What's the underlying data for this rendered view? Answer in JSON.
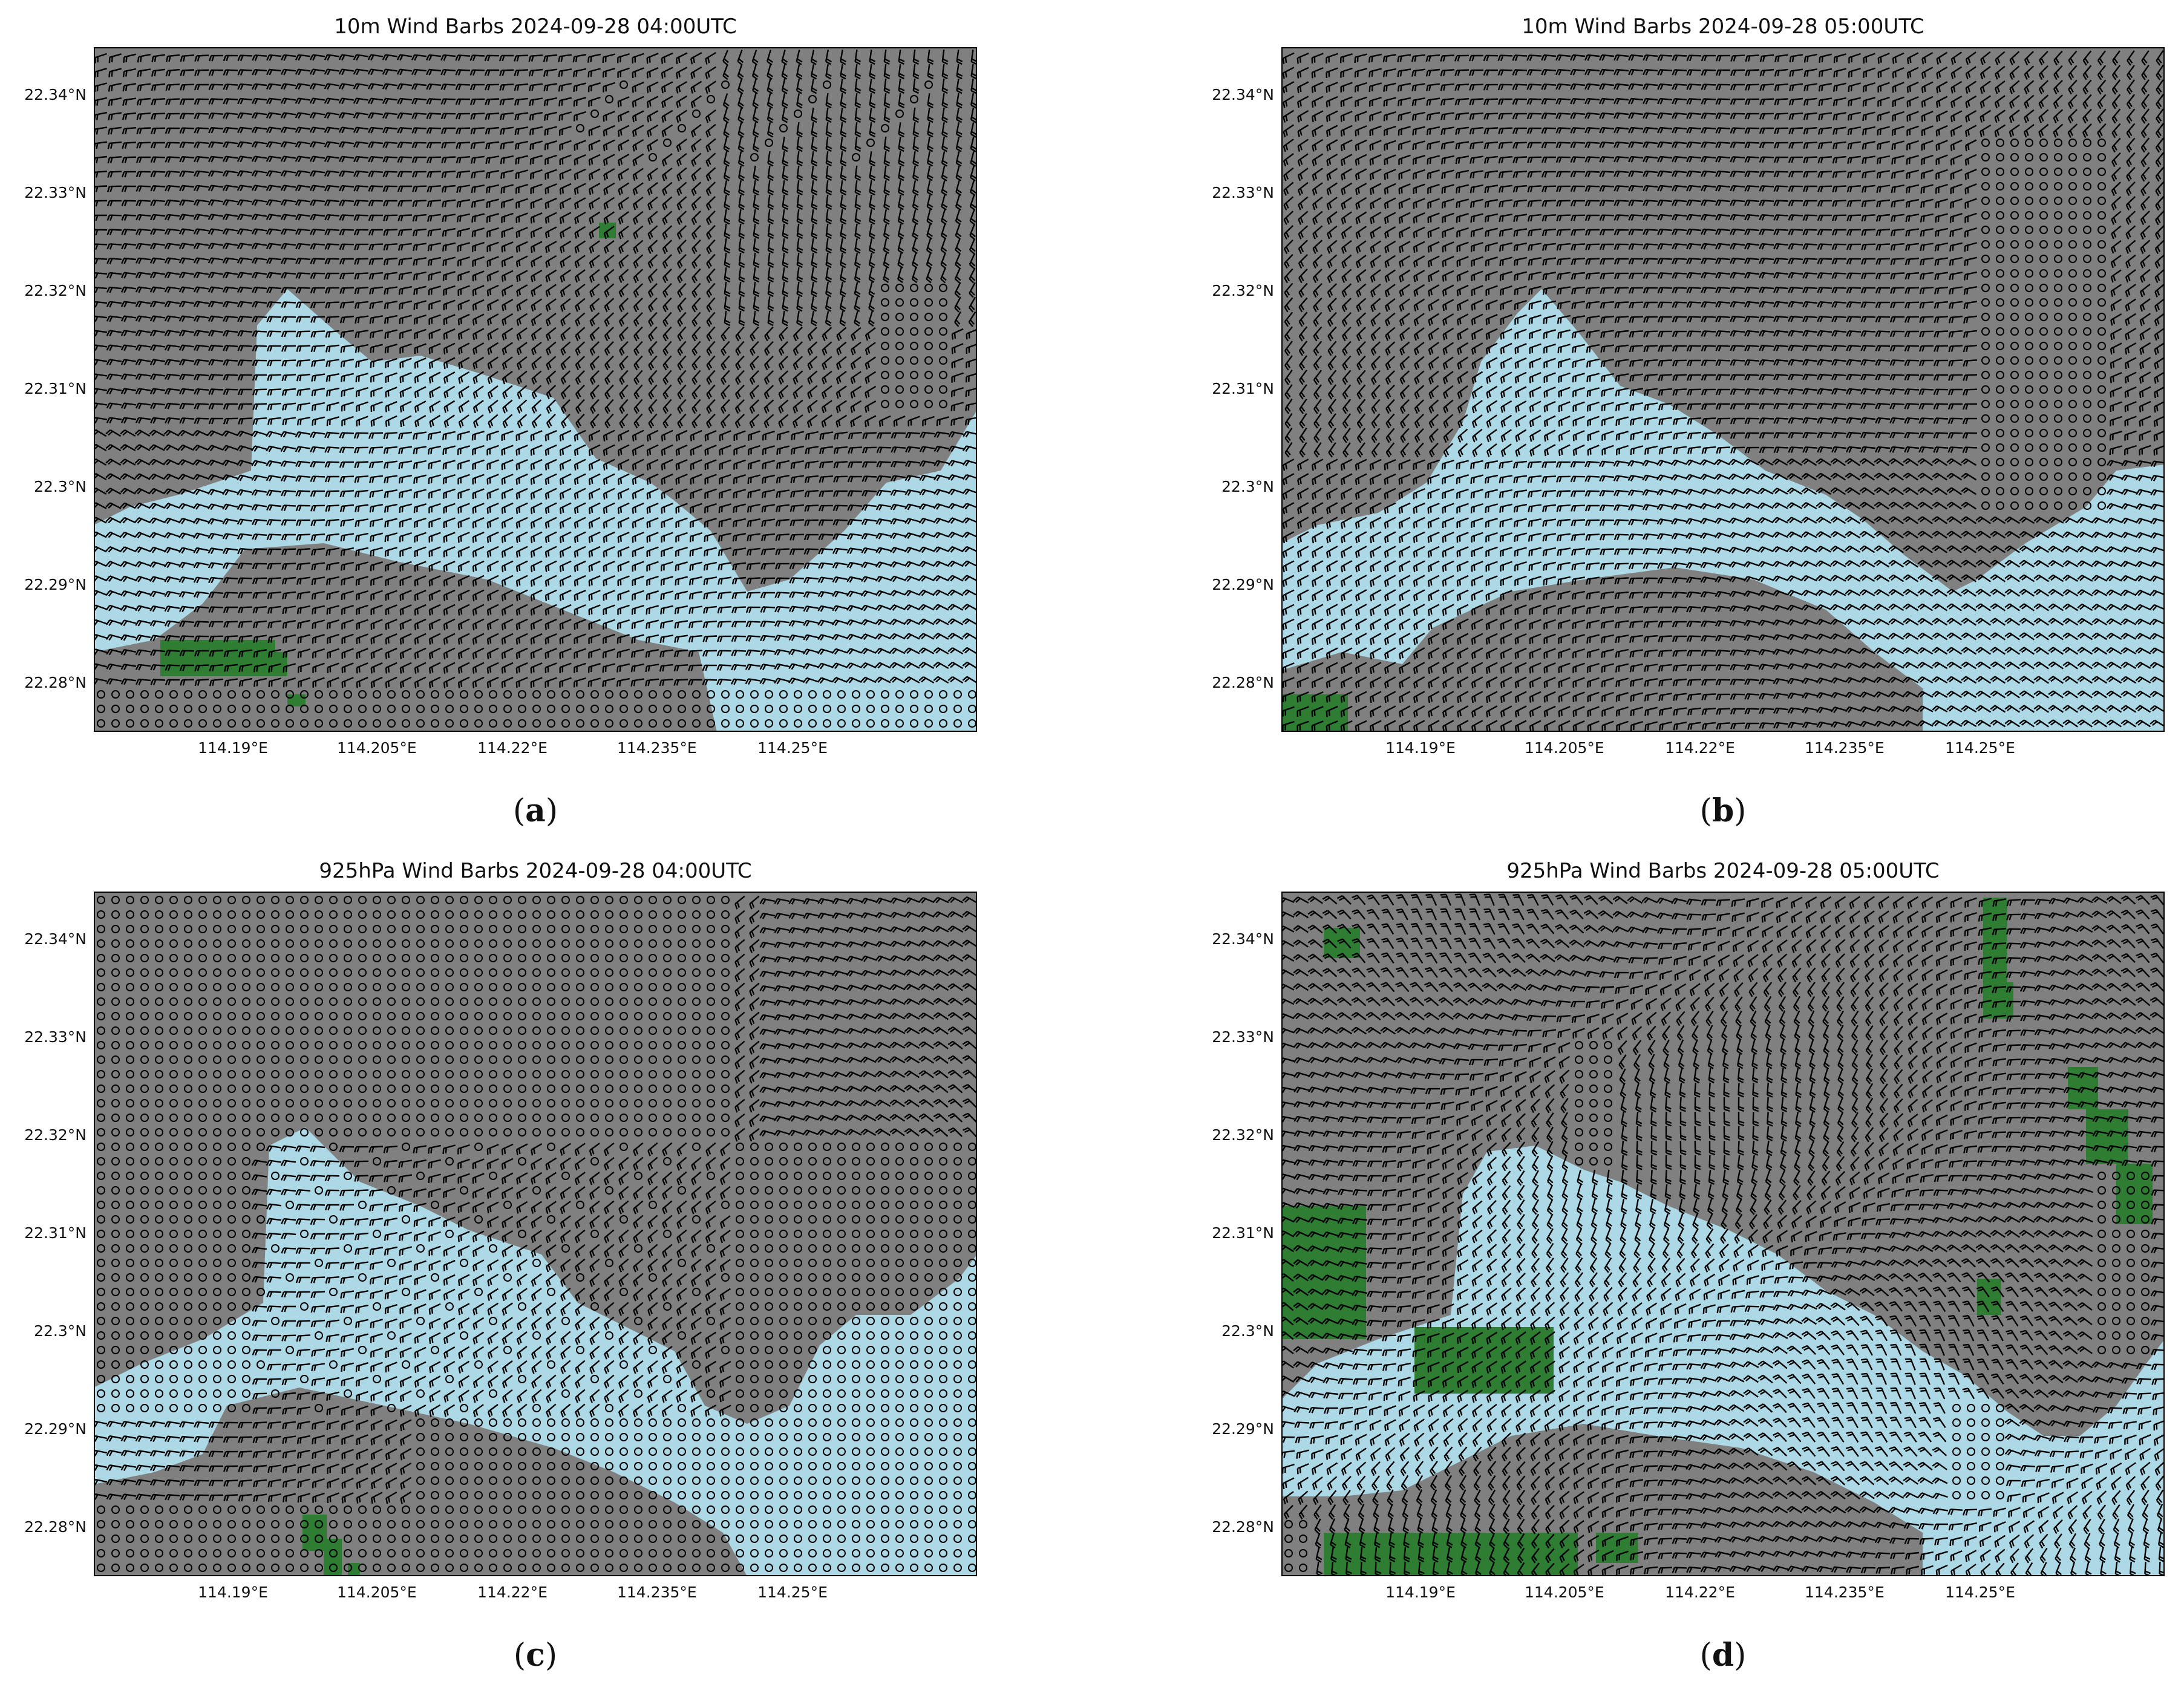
{
  "panels": [
    {
      "id": "a",
      "title": "10m Wind Barbs 2024-09-28 04:00UTC",
      "caption_letter": "a",
      "green_patches": "few"
    },
    {
      "id": "b",
      "title": "10m Wind Barbs 2024-09-28 05:00UTC",
      "caption_letter": "b",
      "green_patches": "few"
    },
    {
      "id": "c",
      "title": "925hPa Wind Barbs 2024-09-28 04:00UTC",
      "caption_letter": "c",
      "green_patches": "few"
    },
    {
      "id": "d",
      "title": "925hPa Wind Barbs 2024-09-28 05:00UTC",
      "caption_letter": "d",
      "green_patches": "several"
    }
  ],
  "axes": {
    "lat_ticks": [
      "22.34°N",
      "22.33°N",
      "22.32°N",
      "22.31°N",
      "22.3°N",
      "22.29°N",
      "22.28°N"
    ],
    "lon_ticks": [
      "114.19°E",
      "114.205°E",
      "114.22°E",
      "114.235°E",
      "114.25°E"
    ]
  },
  "legend_colors": {
    "land": "#808080",
    "water": "#add8e6",
    "vegetation": "#2e7d32",
    "barb": "#000000"
  }
}
